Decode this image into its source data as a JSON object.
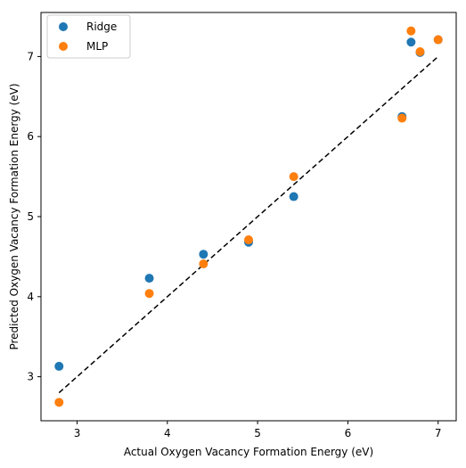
{
  "chart_data": {
    "type": "scatter",
    "xlabel": "Actual Oxygen Vacancy Formation Energy (eV)",
    "ylabel": "Predicted Oxygen Vacancy Formation Energy (eV)",
    "xlim": [
      2.6,
      7.2
    ],
    "ylim": [
      2.45,
      7.55
    ],
    "xticks": [
      3,
      4,
      5,
      6,
      7
    ],
    "yticks": [
      3,
      4,
      5,
      6,
      7
    ],
    "grid": false,
    "legend_position": "top-left",
    "reference_line": {
      "style": "dashed",
      "color": "#000000",
      "from": [
        2.8,
        2.8
      ],
      "to": [
        7.0,
        7.0
      ]
    },
    "series": [
      {
        "name": "Ridge",
        "color": "#1f77b4",
        "points": [
          {
            "x": 2.8,
            "y": 3.13
          },
          {
            "x": 3.8,
            "y": 4.23
          },
          {
            "x": 4.4,
            "y": 4.53
          },
          {
            "x": 4.9,
            "y": 4.68
          },
          {
            "x": 5.4,
            "y": 5.25
          },
          {
            "x": 6.6,
            "y": 6.25
          },
          {
            "x": 6.7,
            "y": 7.18
          },
          {
            "x": 6.8,
            "y": 7.05
          },
          {
            "x": 7.0,
            "y": 7.21
          }
        ]
      },
      {
        "name": "MLP",
        "color": "#ff7f0e",
        "points": [
          {
            "x": 2.8,
            "y": 2.68
          },
          {
            "x": 3.8,
            "y": 4.04
          },
          {
            "x": 4.4,
            "y": 4.41
          },
          {
            "x": 4.9,
            "y": 4.71
          },
          {
            "x": 5.4,
            "y": 5.5
          },
          {
            "x": 6.6,
            "y": 6.23
          },
          {
            "x": 6.7,
            "y": 7.32
          },
          {
            "x": 6.8,
            "y": 7.06
          },
          {
            "x": 7.0,
            "y": 7.21
          }
        ]
      }
    ]
  }
}
